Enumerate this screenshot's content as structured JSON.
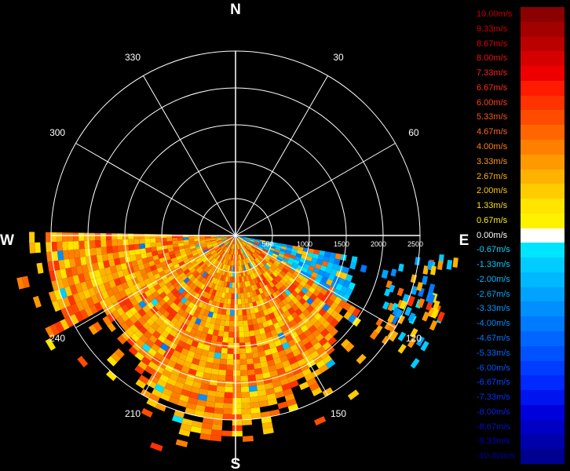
{
  "cardinals": {
    "n": "N",
    "s": "S",
    "e": "E",
    "w": "W"
  },
  "bearings": [
    {
      "angle": 330,
      "label": "330"
    },
    {
      "angle": 30,
      "label": "30"
    },
    {
      "angle": 300,
      "label": "300"
    },
    {
      "angle": 60,
      "label": "60"
    },
    {
      "angle": 240,
      "label": "240"
    },
    {
      "angle": 120,
      "label": "120"
    },
    {
      "angle": 210,
      "label": "210"
    },
    {
      "angle": 150,
      "label": "150"
    }
  ],
  "range_rings": [
    {
      "value": 500,
      "label": "500"
    },
    {
      "value": 1000,
      "label": "1000"
    },
    {
      "value": 1500,
      "label": "1500"
    },
    {
      "value": 2000,
      "label": "2000"
    },
    {
      "value": 2500,
      "label": "2500"
    }
  ],
  "legend": [
    {
      "label": "10.00m/s",
      "color": "#8b0000",
      "text_color": "#c00000"
    },
    {
      "label": "9.33m/s",
      "color": "#a30000",
      "text_color": "#d00000"
    },
    {
      "label": "8.67m/s",
      "color": "#bb0000",
      "text_color": "#e00000"
    },
    {
      "label": "8.00m/s",
      "color": "#d60000",
      "text_color": "#f01010"
    },
    {
      "label": "7.33m/s",
      "color": "#ee0000",
      "text_color": "#ff2020"
    },
    {
      "label": "6.67m/s",
      "color": "#ff1a00",
      "text_color": "#ff3010"
    },
    {
      "label": "6.00m/s",
      "color": "#ff3300",
      "text_color": "#ff4010"
    },
    {
      "label": "5.33m/s",
      "color": "#ff4c00",
      "text_color": "#ff5510"
    },
    {
      "label": "4.67m/s",
      "color": "#ff6600",
      "text_color": "#ff6a10"
    },
    {
      "label": "4.00m/s",
      "color": "#ff7f00",
      "text_color": "#ff8010"
    },
    {
      "label": "3.33m/s",
      "color": "#ff9900",
      "text_color": "#ff9910"
    },
    {
      "label": "2.67m/s",
      "color": "#ffb200",
      "text_color": "#ffb010"
    },
    {
      "label": "2.00m/s",
      "color": "#ffcc00",
      "text_color": "#ffc810"
    },
    {
      "label": "1.33m/s",
      "color": "#ffe500",
      "text_color": "#ffdd10"
    },
    {
      "label": "0.67m/s",
      "color": "#fff200",
      "text_color": "#fff010"
    },
    {
      "label": "0.00m/s",
      "color": "#ffffff",
      "text_color": "#ffffff"
    },
    {
      "label": "-0.67m/s",
      "color": "#00e5ff",
      "text_color": "#00d8ff"
    },
    {
      "label": "-1.33m/s",
      "color": "#00ccff",
      "text_color": "#00c8ff"
    },
    {
      "label": "-2.00m/s",
      "color": "#00b8ff",
      "text_color": "#00b8ff"
    },
    {
      "label": "-2.67m/s",
      "color": "#00a3ff",
      "text_color": "#00a8ff"
    },
    {
      "label": "-3.33m/s",
      "color": "#008fff",
      "text_color": "#0098ff"
    },
    {
      "label": "-4.00m/s",
      "color": "#007aff",
      "text_color": "#0088ff"
    },
    {
      "label": "-4.67m/s",
      "color": "#0066ff",
      "text_color": "#0078ff"
    },
    {
      "label": "-5.33m/s",
      "color": "#0052ff",
      "text_color": "#0066ff"
    },
    {
      "label": "-6.00m/s",
      "color": "#003dff",
      "text_color": "#0055ff"
    },
    {
      "label": "-6.67m/s",
      "color": "#0029ff",
      "text_color": "#0044ff"
    },
    {
      "label": "-7.33m/s",
      "color": "#0014f0",
      "text_color": "#0033ee"
    },
    {
      "label": "-8.00m/s",
      "color": "#0000dd",
      "text_color": "#0022dd"
    },
    {
      "label": "-8.67m/s",
      "color": "#0000c4",
      "text_color": "#0011cc"
    },
    {
      "label": "-9.33m/s",
      "color": "#0000aa",
      "text_color": "#0000bb"
    },
    {
      "label": "-10.00m/s",
      "color": "#000090",
      "text_color": "#0000aa"
    }
  ],
  "colors": {
    "background": "#000000",
    "grid": "#ffffff",
    "approaching": "#00c8ff",
    "receding": "#ff9900"
  }
}
